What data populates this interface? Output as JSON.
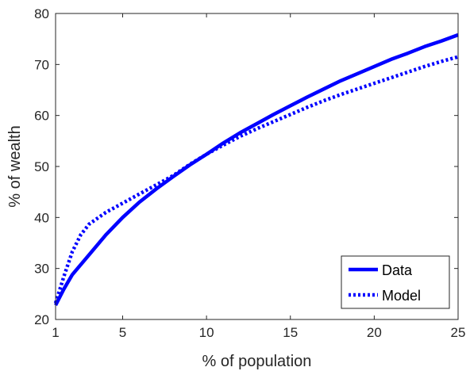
{
  "chart_data": {
    "type": "line",
    "title": "",
    "xlabel": "% of population",
    "ylabel": "% of wealth",
    "xlim": [
      1,
      25
    ],
    "ylim": [
      20,
      80
    ],
    "xticks": [
      1,
      5,
      10,
      15,
      20,
      25
    ],
    "yticks": [
      20,
      30,
      40,
      50,
      60,
      70,
      80
    ],
    "grid": false,
    "legend_position": "bottom-right",
    "series": [
      {
        "name": "Data",
        "color": "#0000ff",
        "style": "solid",
        "x": [
          1,
          1.5,
          2,
          3,
          4,
          5,
          6,
          7,
          8,
          9,
          10,
          11,
          12,
          13,
          14,
          15,
          16,
          17,
          18,
          19,
          20,
          21,
          22,
          23,
          24,
          25
        ],
        "y": [
          22.8,
          26.0,
          28.8,
          32.7,
          36.6,
          40.0,
          43.0,
          45.6,
          48.0,
          50.3,
          52.4,
          54.6,
          56.6,
          58.4,
          60.2,
          61.9,
          63.6,
          65.2,
          66.8,
          68.2,
          69.6,
          71.0,
          72.2,
          73.5,
          74.6,
          75.8
        ]
      },
      {
        "name": "Model",
        "color": "#0000ff",
        "style": "dotted",
        "x": [
          1,
          1.5,
          2,
          2.5,
          3,
          4,
          5,
          6,
          7,
          8,
          9,
          10,
          11,
          12,
          13,
          14,
          15,
          16,
          17,
          18,
          19,
          20,
          21,
          22,
          23,
          24,
          25
        ],
        "y": [
          23.2,
          28.5,
          33.3,
          36.6,
          38.7,
          41.0,
          42.8,
          44.6,
          46.4,
          48.2,
          50.4,
          52.4,
          54.2,
          55.9,
          57.4,
          58.8,
          60.2,
          61.6,
          62.9,
          64.1,
          65.2,
          66.3,
          67.4,
          68.5,
          69.6,
          70.6,
          71.5
        ]
      }
    ]
  }
}
